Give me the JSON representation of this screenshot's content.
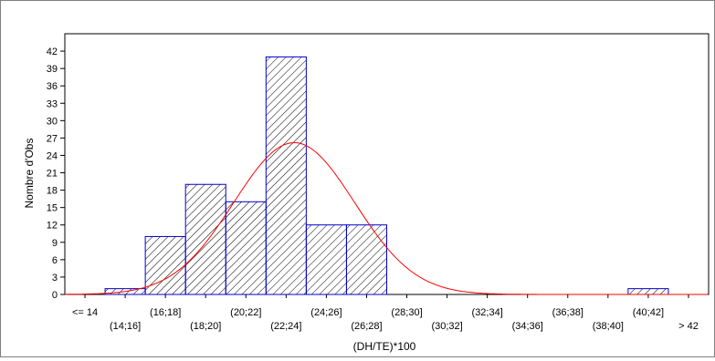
{
  "chart_data": {
    "type": "bar",
    "subtype": "histogram",
    "title": "",
    "xlabel": "(DH/TE)*100",
    "ylabel": "Nombre d'Obs",
    "categories": [
      "<= 14",
      "(14;16]",
      "(16;18]",
      "(18;20]",
      "(20;22]",
      "(22;24]",
      "(24;26]",
      "(26;28]",
      "(28;30]",
      "(30;32]",
      "(32;34]",
      "(34;36]",
      "(36;38]",
      "(38;40]",
      "(40;42]",
      "> 42"
    ],
    "values": [
      0,
      1,
      10,
      19,
      16,
      41,
      12,
      12,
      0,
      0,
      0,
      0,
      0,
      0,
      1,
      0
    ],
    "yticks": [
      0,
      3,
      6,
      9,
      12,
      15,
      18,
      21,
      24,
      27,
      30,
      33,
      36,
      39,
      42
    ],
    "ylim": [
      0,
      45
    ],
    "grid": false,
    "bar_fill": "hatched",
    "bar_edge_color": "#0000cc",
    "hatch_color": "#000000",
    "fit_curve": {
      "type": "normal",
      "color": "#ff0000",
      "mean_category_index": 5.2,
      "sd_categories": 1.5,
      "peak": 26.2
    }
  }
}
